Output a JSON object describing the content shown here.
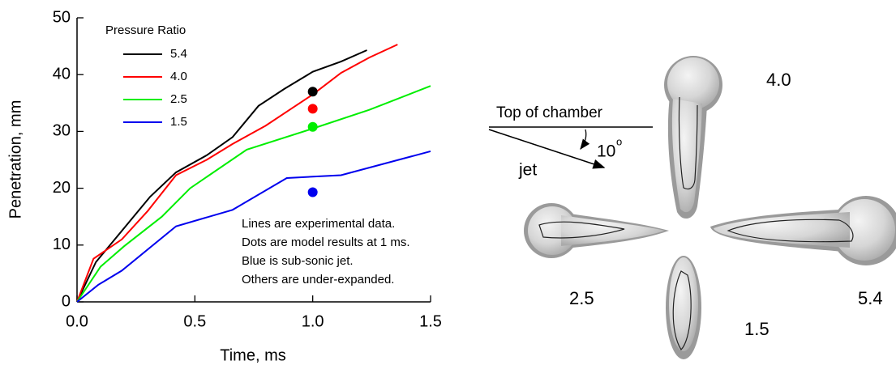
{
  "chart_data": {
    "type": "line",
    "xlabel": "Time, ms",
    "ylabel": "Penetration, mm",
    "xlim": [
      0,
      1.5
    ],
    "xticks": [
      {
        "value": 0,
        "label": "0.0"
      },
      0.5,
      {
        "value": 1,
        "label": "1.0"
      },
      1.5
    ],
    "ylim": [
      0,
      50
    ],
    "yticks": [
      0,
      10,
      20,
      30,
      40,
      50
    ],
    "legend_title": "Pressure Ratio",
    "legend": "upper left",
    "series": [
      {
        "name": "5.4",
        "color": "#000000",
        "x": [
          0,
          0.08,
          0.2,
          0.31,
          0.42,
          0.55,
          0.66,
          0.77,
          0.88,
          1.0,
          1.12,
          1.23
        ],
        "values": [
          0,
          7,
          13,
          18.5,
          22.8,
          25.8,
          29,
          34.5,
          37.5,
          40.5,
          42.3,
          44.3
        ]
      },
      {
        "name": "4.0",
        "color": "#ff0000",
        "x": [
          0,
          0.07,
          0.19,
          0.3,
          0.42,
          0.55,
          0.66,
          0.8,
          0.92,
          1.0,
          1.12,
          1.24,
          1.36
        ],
        "values": [
          0,
          7.6,
          11,
          16,
          22.3,
          25,
          27.8,
          31,
          34.3,
          36.5,
          40.3,
          43,
          45.3
        ]
      },
      {
        "name": "2.5",
        "color": "#00ee00",
        "x": [
          0,
          0.1,
          0.2,
          0.36,
          0.48,
          0.72,
          1.0,
          1.24,
          1.5
        ],
        "values": [
          0,
          6.2,
          9.8,
          15,
          20,
          26.8,
          30.5,
          33.8,
          38
        ]
      },
      {
        "name": "1.5",
        "color": "#0000ee",
        "x": [
          0,
          0.09,
          0.19,
          0.42,
          0.66,
          0.89,
          1.12,
          1.5
        ],
        "values": [
          0,
          3,
          5.5,
          13.3,
          16.2,
          21.8,
          22.3,
          26.5
        ]
      }
    ],
    "model_points": {
      "x": [
        1,
        1,
        1,
        1
      ],
      "values": [
        37,
        34,
        30.8,
        19.3
      ],
      "colors": [
        "#000000",
        "#ff0000",
        "#00ee00",
        "#0000ee"
      ]
    },
    "annotations": [
      "Lines are experimental data.",
      "Dots are model results at 1 ms.",
      "Blue is sub-sonic jet.",
      "Others are under-expanded."
    ]
  },
  "figure": {
    "labels": [
      "4.0",
      "2.5",
      "5.4",
      "1.5"
    ],
    "chamber": "Top of chamber",
    "angle": "10",
    "angle_unit": "o",
    "jet": "jet"
  }
}
